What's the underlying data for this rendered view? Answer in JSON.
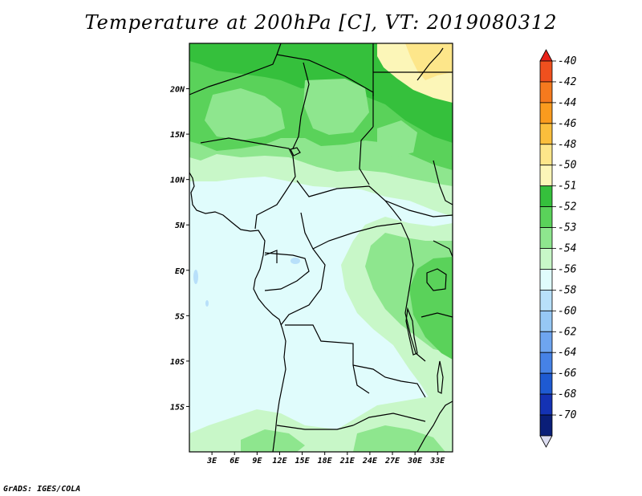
{
  "title": "Temperature at 200hPa [C], VT: 2019080312",
  "credit": "GrADS: IGES/COLA",
  "map": {
    "lon_range": [
      0,
      35
    ],
    "lat_range": [
      -20,
      25
    ],
    "lon_ticks": [
      "3E",
      "6E",
      "9E",
      "12E",
      "15E",
      "18E",
      "21E",
      "24E",
      "27E",
      "30E",
      "33E"
    ],
    "lon_values": [
      3,
      6,
      9,
      12,
      15,
      18,
      21,
      24,
      27,
      30,
      33
    ],
    "lat_ticks": [
      "20N",
      "15N",
      "10N",
      "5N",
      "EQ",
      "5S",
      "10S",
      "15S"
    ],
    "lat_values": [
      20,
      15,
      10,
      5,
      0,
      -5,
      -10,
      -15
    ]
  },
  "colorbar": {
    "levels": [
      "-40",
      "-42",
      "-44",
      "-46",
      "-48",
      "-50",
      "-51",
      "-52",
      "-53",
      "-54",
      "-56",
      "-58",
      "-60",
      "-62",
      "-64",
      "-66",
      "-68",
      "-70"
    ],
    "colors": [
      "#e8231a",
      "#f0501e",
      "#f57a1e",
      "#fa9b1e",
      "#fbbe3c",
      "#fde68a",
      "#fcf6b8",
      "#35c03c",
      "#5ad25a",
      "#8ee68e",
      "#c8f7c8",
      "#e0fcfc",
      "#b8e0fa",
      "#96c8f5",
      "#6ea5f0",
      "#4682e6",
      "#1e5ad2",
      "#1432b4",
      "#0a1e78",
      "#dcdcf0"
    ]
  },
  "legend_colors": {
    "lt_54": "#e0fcfc",
    "m53_54": "#c8f7c8",
    "m52_53": "#8ee68e",
    "m51_52": "#5ad25a",
    "m50_51": "#35c03c",
    "m48_50": "#fcf6b8",
    "m46_48": "#fde68a"
  }
}
